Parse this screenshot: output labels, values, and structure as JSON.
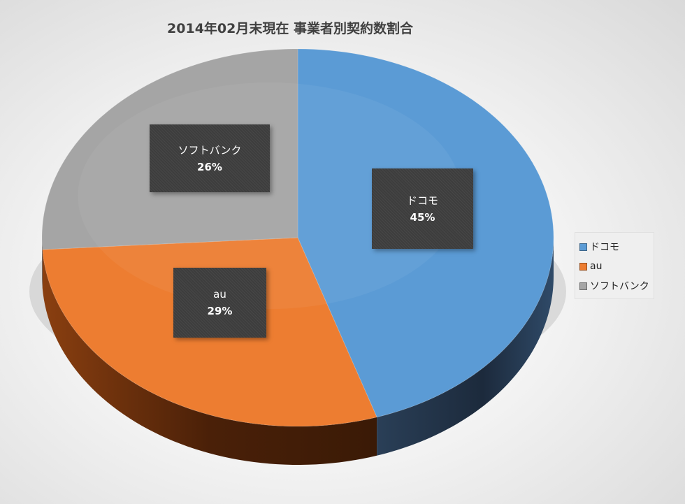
{
  "chart_data": {
    "type": "pie",
    "title": "2014年02月末現在 事業者別契約数割合",
    "categories": [
      "ドコモ",
      "au",
      "ソフトバンク"
    ],
    "values": [
      45,
      29,
      26
    ],
    "unit": "%",
    "colors": [
      "#5b9bd5",
      "#ed7d31",
      "#a5a5a5"
    ],
    "legend_position": "right",
    "data_labels": [
      {
        "category": "ドコモ",
        "percent": "45%"
      },
      {
        "category": "au",
        "percent": "29%"
      },
      {
        "category": "ソフトバンク",
        "percent": "26%"
      }
    ]
  }
}
